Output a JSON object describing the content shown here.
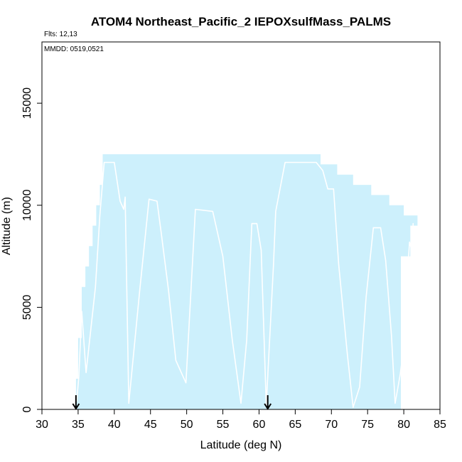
{
  "chart_data": {
    "type": "area",
    "title": "ATOM4 Northeast_Pacific_2 IEPOXsulfMass_PALMS",
    "annotations": {
      "flights": "Flts: 12,13",
      "dates": "MMDD: 0519,0521"
    },
    "xlabel": "Latitude (deg N)",
    "ylabel": "Altitude (m)",
    "xlim": [
      30,
      85
    ],
    "ylim": [
      0,
      18000
    ],
    "xticks": [
      30,
      35,
      40,
      45,
      50,
      55,
      60,
      65,
      70,
      75,
      80,
      85
    ],
    "yticks": [
      0,
      5000,
      10000,
      15000
    ],
    "grid": false,
    "fill_color": "#cdf0fc",
    "track_color": "#ffffff",
    "coverage_envelope": {
      "x": [
        34.7,
        34.7,
        35.0,
        35.0,
        35.5,
        35.5,
        36.0,
        36.0,
        36.5,
        36.5,
        37.0,
        37.0,
        37.5,
        37.5,
        38.0,
        38.0,
        38.4,
        38.4,
        68.5,
        68.5,
        70.8,
        70.8,
        73.0,
        73.0,
        75.5,
        75.5,
        78.0,
        78.0,
        80.0,
        80.0,
        81.9,
        81.9,
        80.9,
        80.9,
        79.6,
        79.6
      ],
      "y": [
        0,
        1500,
        1500,
        3500,
        3500,
        6000,
        6000,
        7000,
        7000,
        8000,
        8000,
        9000,
        9000,
        10000,
        10000,
        11000,
        11000,
        12500,
        12500,
        12000,
        12000,
        11500,
        11500,
        11000,
        11000,
        10500,
        10500,
        10000,
        10000,
        9500,
        9500,
        9000,
        9000,
        7500,
        7500,
        0
      ]
    },
    "flight_track": {
      "x": [
        34.8,
        35.1,
        35.5,
        36.1,
        37.4,
        38.0,
        38.6,
        40.0,
        40.8,
        41.3,
        41.5,
        42.0,
        43.5,
        44.8,
        45.9,
        46.5,
        47.5,
        48.5,
        49.9,
        51.2,
        53.6,
        55.0,
        56.3,
        57.5,
        58.3,
        59.0,
        59.7,
        60.3,
        61.0,
        62.0,
        62.3,
        63.6,
        67.9,
        68.8,
        69.5,
        70.3,
        71.0,
        72.2,
        73.0,
        73.9,
        74.8,
        75.8,
        76.8,
        77.5,
        78.3,
        78.8,
        79.5,
        79.9,
        80.3,
        80.8,
        81.1,
        81.3
      ],
      "y": [
        400,
        1600,
        4800,
        1800,
        6000,
        9500,
        12100,
        12100,
        10200,
        9800,
        10400,
        300,
        5800,
        10300,
        10200,
        8600,
        5800,
        2400,
        1300,
        9800,
        9700,
        7500,
        3400,
        300,
        3400,
        9100,
        9100,
        7800,
        200,
        7100,
        9700,
        12100,
        12100,
        11700,
        10800,
        10800,
        7100,
        2700,
        100,
        1100,
        5500,
        8900,
        8900,
        7300,
        3600,
        300,
        1700,
        2800,
        5500,
        8200,
        7800,
        9100
      ]
    },
    "markers": [
      {
        "x": 34.7,
        "type": "arrow-down"
      },
      {
        "x": 61.2,
        "type": "arrow-down"
      }
    ]
  }
}
